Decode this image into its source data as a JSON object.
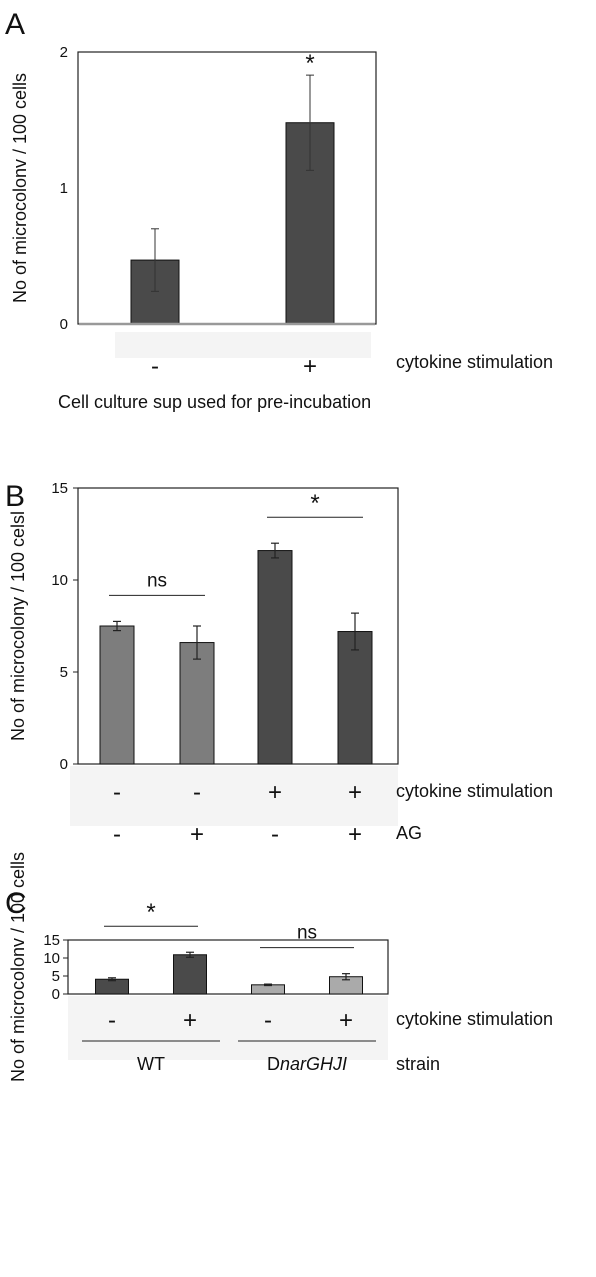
{
  "chart_data": [
    {
      "panel_label": "A",
      "type": "bar",
      "ylabel": "No of microcolonv / 100 cells",
      "ylim": [
        0,
        2
      ],
      "yticks": [
        "0",
        "1",
        "2"
      ],
      "bar_color": "#4a4a4a",
      "categories": [
        {
          "label": "-",
          "value": 0.47,
          "err": 0.23
        },
        {
          "label": "+",
          "value": 1.48,
          "err": 0.35
        }
      ],
      "row_labels": [
        "cytokine stimulation"
      ],
      "footer": "Cell culture sup used for pre-incubation",
      "annotations": [
        {
          "text": "*",
          "over": 1
        }
      ]
    },
    {
      "panel_label": "B",
      "type": "bar",
      "ylabel": "No of microcolony / 100 celsl",
      "ylim": [
        0,
        15
      ],
      "yticks": [
        "0",
        "5",
        "10",
        "15"
      ],
      "bar_colors": [
        "#7d7d7d",
        "#7d7d7d",
        "#4a4a4a",
        "#4a4a4a"
      ],
      "values": [
        7.5,
        6.6,
        11.6,
        7.2
      ],
      "errors": [
        0.25,
        0.9,
        0.4,
        1.0
      ],
      "rows": [
        {
          "label": "cytokine stimulation",
          "signs": [
            "-",
            "-",
            "+",
            "+"
          ]
        },
        {
          "label": "AG",
          "signs": [
            "-",
            "+",
            "-",
            "+"
          ]
        }
      ],
      "comparisons": [
        {
          "from": 0,
          "to": 1,
          "text": "ns"
        },
        {
          "from": 2,
          "to": 3,
          "text": "*"
        }
      ]
    },
    {
      "panel_label": "C",
      "type": "bar",
      "ylabel": "No of microcolonv / 100 cells",
      "ylim": [
        0,
        15
      ],
      "yticks": [
        "0",
        "5",
        "10",
        "15"
      ],
      "bar_colors": [
        "#4a4a4a",
        "#4a4a4a",
        "#aaaaaa",
        "#aaaaaa"
      ],
      "values": [
        4.1,
        10.9,
        2.55,
        4.8
      ],
      "errors": [
        0.4,
        0.7,
        0.2,
        0.85
      ],
      "rows": [
        {
          "label": "cytokine stimulation",
          "signs": [
            "-",
            "+",
            "-",
            "+"
          ]
        }
      ],
      "comparisons": [
        {
          "from": 0,
          "to": 1,
          "text": "*"
        },
        {
          "from": 2,
          "to": 3,
          "text": "ns"
        }
      ],
      "groups": [
        {
          "from": 0,
          "to": 1,
          "text": "WT"
        },
        {
          "from": 2,
          "to": 3,
          "prefix": "D",
          "italic": "narGHJI"
        }
      ],
      "group_row_label": "strain"
    }
  ]
}
